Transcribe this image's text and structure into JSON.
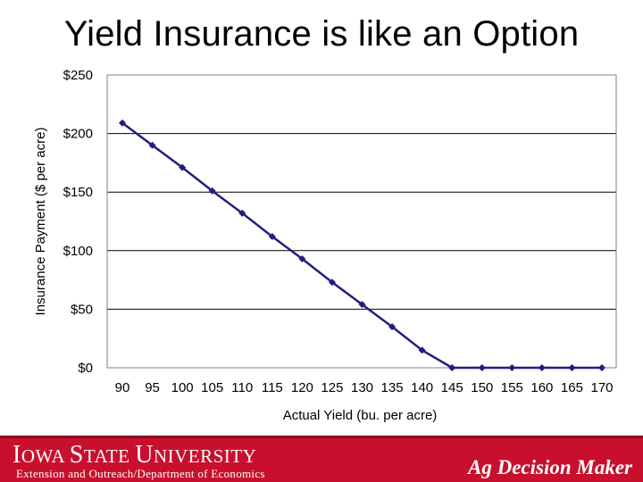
{
  "slide": {
    "title": "Yield Insurance is like an Option"
  },
  "footer": {
    "institution": "Iowa State University",
    "department": "Extension and Outreach/Department of Economics",
    "brand": "Ag Decision Maker"
  },
  "colors": {
    "series": "#1f1f80",
    "footer_bg": "#c8102e",
    "grid": "#000000"
  },
  "chart_data": {
    "type": "line",
    "title": "",
    "xlabel": "Actual Yield (bu. per acre)",
    "ylabel": "Insurance Payment ($ per acre)",
    "ylim": [
      0,
      250
    ],
    "yticks": [
      0,
      50,
      100,
      150,
      200,
      250
    ],
    "ytick_labels": [
      "$0",
      "$50",
      "$100",
      "$150",
      "$200",
      "$250"
    ],
    "x": [
      90,
      95,
      100,
      105,
      110,
      115,
      120,
      125,
      130,
      135,
      140,
      145,
      150,
      155,
      160,
      165,
      170
    ],
    "xtick_labels": [
      "90",
      "95",
      "100",
      "105",
      "110",
      "115",
      "120",
      "125",
      "130",
      "135",
      "140",
      "145",
      "150",
      "155",
      "160",
      "165",
      "170"
    ],
    "grid": true,
    "series": [
      {
        "name": "Insurance Payment",
        "values": [
          209,
          190,
          171,
          151,
          132,
          112,
          93,
          73,
          54,
          35,
          15,
          0,
          0,
          0,
          0,
          0,
          0
        ]
      }
    ]
  }
}
